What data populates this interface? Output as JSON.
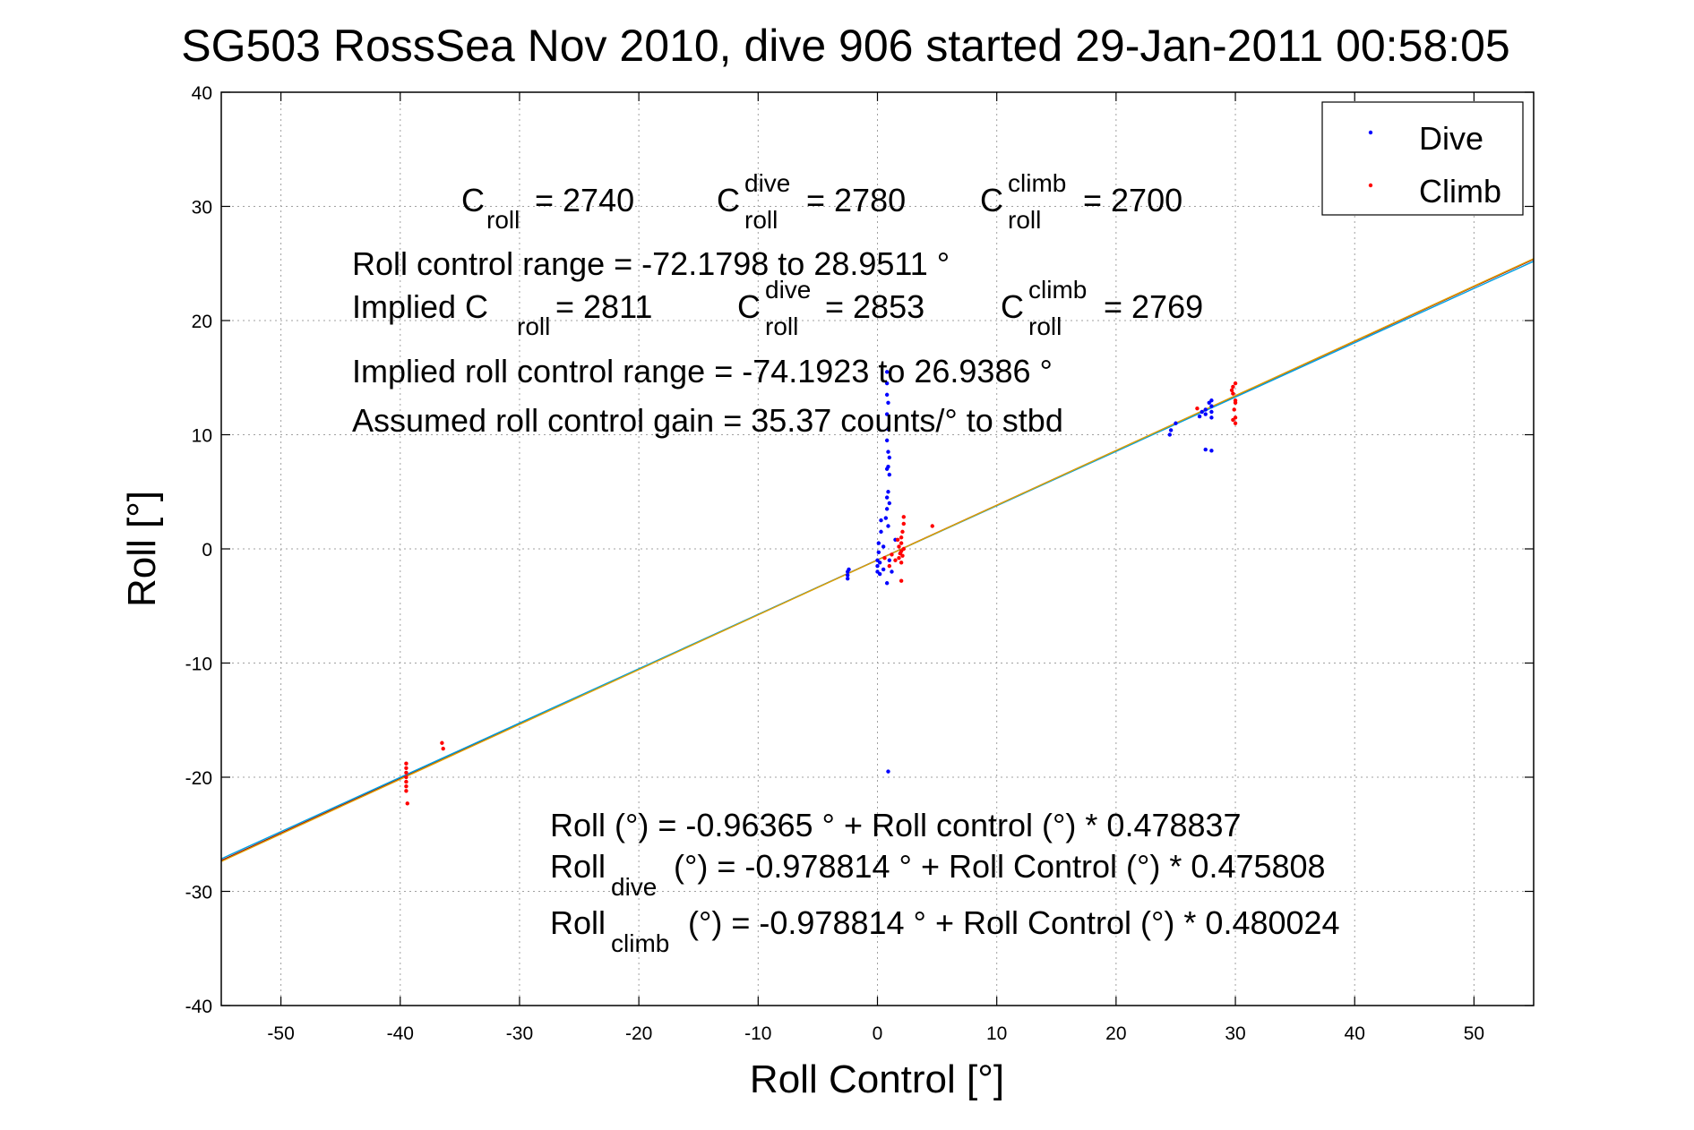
{
  "title": "SG503 RossSea Nov 2010, dive 906 started 29-Jan-2011 00:58:05",
  "colors": {
    "dive": "#0000ff",
    "climb": "#ff0000",
    "fit_all": "#8b0000",
    "fit_dive": "#00a0e0",
    "fit_climb": "#e0a000",
    "axis": "#000000",
    "grid": "#a0a0a0"
  },
  "annotations": {
    "c_roll_base": "C",
    "c_roll_sub": "roll",
    "c_roll_val": "= 2740",
    "c_dive_sup": "dive",
    "c_dive_sub": "roll",
    "c_dive_val": "= 2780",
    "c_climb_sup": "climb",
    "c_climb_sub": "roll",
    "c_climb_val": "= 2700",
    "range_line": "Roll control range = -72.1798 to 28.9511 °",
    "implied_prefix": "Implied C",
    "implied_sub": "roll",
    "implied_val": "= 2811",
    "implied_dive_sup": "dive",
    "implied_dive_sub": "roll",
    "implied_dive_val": "= 2853",
    "implied_climb_sup": "climb",
    "implied_climb_sub": "roll",
    "implied_climb_val": "= 2769",
    "implied_range_line": "Implied roll control range = -74.1923 to 26.9386 °",
    "gain_line": "Assumed roll control gain = 35.37 counts/° to stbd",
    "fit_all_line": "Roll (°) = -0.96365 ° + Roll control (°) * 0.478837",
    "fit_dive_base": "Roll",
    "fit_dive_sub": "dive",
    "fit_dive_rest": "(°) = -0.978814 ° + Roll Control (°) * 0.475808",
    "fit_climb_base": "Roll",
    "fit_climb_sub": "climb",
    "fit_climb_rest": "(°) = -0.978814 ° + Roll Control (°) * 0.480024"
  },
  "chart_data": {
    "type": "scatter",
    "title": "SG503 RossSea Nov 2010, dive 906 started 29-Jan-2011 00:58:05",
    "xlabel": "Roll Control [°]",
    "ylabel": "Roll [°]",
    "xlim": [
      -55,
      55
    ],
    "ylim": [
      -40,
      40
    ],
    "xticks": [
      -50,
      -40,
      -30,
      -20,
      -10,
      0,
      10,
      20,
      30,
      40,
      50
    ],
    "yticks": [
      -40,
      -30,
      -20,
      -10,
      0,
      10,
      20,
      30,
      40
    ],
    "grid": true,
    "legend": {
      "position": "top-right",
      "entries": [
        "Dive",
        "Climb"
      ]
    },
    "series": [
      {
        "name": "Dive",
        "color": "#0000ff",
        "marker": "dot",
        "points": [
          [
            -2.5,
            -2.0
          ],
          [
            -2.5,
            -2.3
          ],
          [
            -2.5,
            -2.6
          ],
          [
            -2.4,
            -1.8
          ],
          [
            0.0,
            -1.0
          ],
          [
            0.0,
            -1.5
          ],
          [
            0.0,
            -2.0
          ],
          [
            0.1,
            0.5
          ],
          [
            0.1,
            -0.3
          ],
          [
            0.2,
            -1.2
          ],
          [
            0.3,
            1.5
          ],
          [
            0.3,
            2.5
          ],
          [
            0.2,
            -2.2
          ],
          [
            0.5,
            -1.8
          ],
          [
            0.5,
            0.2
          ],
          [
            0.8,
            15.5
          ],
          [
            0.8,
            14.5
          ],
          [
            0.8,
            13.5
          ],
          [
            0.9,
            12.8
          ],
          [
            0.8,
            11.8
          ],
          [
            0.9,
            10.5
          ],
          [
            0.8,
            9.5
          ],
          [
            0.9,
            8.5
          ],
          [
            0.8,
            7.0
          ],
          [
            1.0,
            6.5
          ],
          [
            0.9,
            5.0
          ],
          [
            0.8,
            4.5
          ],
          [
            0.8,
            3.5
          ],
          [
            0.9,
            2.0
          ],
          [
            1.0,
            4.0
          ],
          [
            0.9,
            7.2
          ],
          [
            1.0,
            8.0
          ],
          [
            0.8,
            -3.0
          ],
          [
            0.9,
            -19.5
          ],
          [
            1.0,
            -1.0
          ],
          [
            1.2,
            -2.0
          ],
          [
            1.5,
            0.8
          ],
          [
            0.7,
            2.7
          ],
          [
            24.5,
            10.0
          ],
          [
            24.6,
            10.4
          ],
          [
            25.0,
            11.0
          ],
          [
            27.0,
            11.6
          ],
          [
            27.2,
            12.0
          ],
          [
            27.5,
            11.8
          ],
          [
            27.5,
            8.7
          ],
          [
            28.0,
            8.6
          ],
          [
            27.5,
            12.2
          ],
          [
            28.0,
            12.5
          ],
          [
            28.0,
            13.0
          ],
          [
            28.0,
            11.5
          ],
          [
            27.8,
            12.8
          ],
          [
            28.0,
            12.0
          ]
        ]
      },
      {
        "name": "Climb",
        "color": "#ff0000",
        "marker": "dot",
        "points": [
          [
            -39.5,
            -18.8
          ],
          [
            -39.5,
            -19.2
          ],
          [
            -39.5,
            -19.6
          ],
          [
            -39.5,
            -20.0
          ],
          [
            -39.5,
            -20.4
          ],
          [
            -39.5,
            -20.8
          ],
          [
            -39.5,
            -21.2
          ],
          [
            -39.4,
            -22.3
          ],
          [
            -36.5,
            -17.0
          ],
          [
            -36.4,
            -17.5
          ],
          [
            0.6,
            -0.8
          ],
          [
            1.0,
            -1.5
          ],
          [
            1.2,
            -0.5
          ],
          [
            1.5,
            -1.0
          ],
          [
            1.8,
            -0.8
          ],
          [
            1.8,
            0.2
          ],
          [
            2.0,
            0.5
          ],
          [
            2.0,
            -0.2
          ],
          [
            2.0,
            1.0
          ],
          [
            2.1,
            1.5
          ],
          [
            2.0,
            -1.2
          ],
          [
            2.0,
            -2.8
          ],
          [
            2.2,
            2.2
          ],
          [
            2.2,
            2.8
          ],
          [
            1.7,
            0.8
          ],
          [
            2.1,
            -0.6
          ],
          [
            2.2,
            0.0
          ],
          [
            1.9,
            -0.4
          ],
          [
            4.6,
            2.0
          ],
          [
            26.8,
            12.3
          ],
          [
            29.8,
            14.2
          ],
          [
            29.8,
            13.6
          ],
          [
            30.0,
            13.0
          ],
          [
            30.0,
            14.5
          ],
          [
            29.9,
            12.2
          ],
          [
            30.0,
            11.5
          ],
          [
            30.0,
            11.0
          ],
          [
            29.8,
            11.3
          ],
          [
            30.0,
            12.8
          ],
          [
            29.7,
            13.9
          ]
        ]
      }
    ],
    "fit_lines": [
      {
        "name": "Roll",
        "intercept": -0.96365,
        "slope": 0.478837,
        "color": "#8b0000"
      },
      {
        "name": "Roll dive",
        "intercept": -0.978814,
        "slope": 0.475808,
        "color": "#00a0e0"
      },
      {
        "name": "Roll climb",
        "intercept": -0.978814,
        "slope": 0.480024,
        "color": "#e0a000"
      }
    ]
  }
}
